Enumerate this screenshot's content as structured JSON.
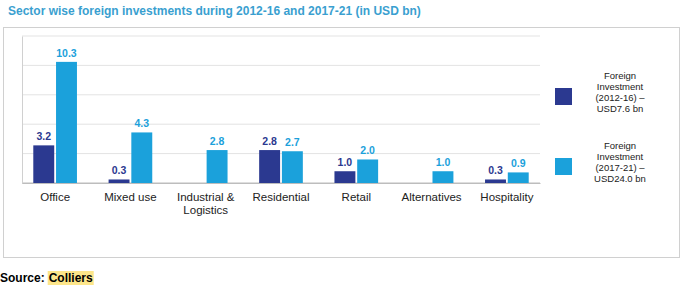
{
  "chart_data": {
    "type": "bar",
    "title": "Sector wise foreign investments during 2012-16 and 2017-21 (in USD bn)",
    "categories": [
      "Office",
      "Mixed use",
      "Industrial & Logistics",
      "Residential",
      "Retail",
      "Alternatives",
      "Hospitality"
    ],
    "series": [
      {
        "name": "Foreign Investment (2012-16) – USD7.6 bn",
        "color": "#2b3990",
        "values": [
          3.2,
          0.3,
          null,
          2.8,
          1.0,
          null,
          0.3
        ],
        "value_labels": [
          "3.2",
          "0.3",
          null,
          "2.8",
          "1.0",
          null,
          "0.3"
        ]
      },
      {
        "name": "Foreign Investment (2017-21) – USD24.0 bn",
        "color": "#1ba1db",
        "values": [
          10.3,
          4.3,
          2.8,
          2.7,
          2.0,
          1.0,
          0.9
        ],
        "value_labels": [
          "10.3",
          "4.3",
          "2.8",
          "2.7",
          "2.0",
          "1.0",
          "0.9"
        ]
      }
    ],
    "ylim": [
      0,
      12.5
    ],
    "yticks": [
      0,
      2.5,
      5,
      7.5,
      10,
      12.5
    ],
    "grid": true,
    "data_labels": true,
    "tick_labels": "x",
    "legend": "right",
    "source_label": "Source:",
    "source": "Colliers"
  }
}
